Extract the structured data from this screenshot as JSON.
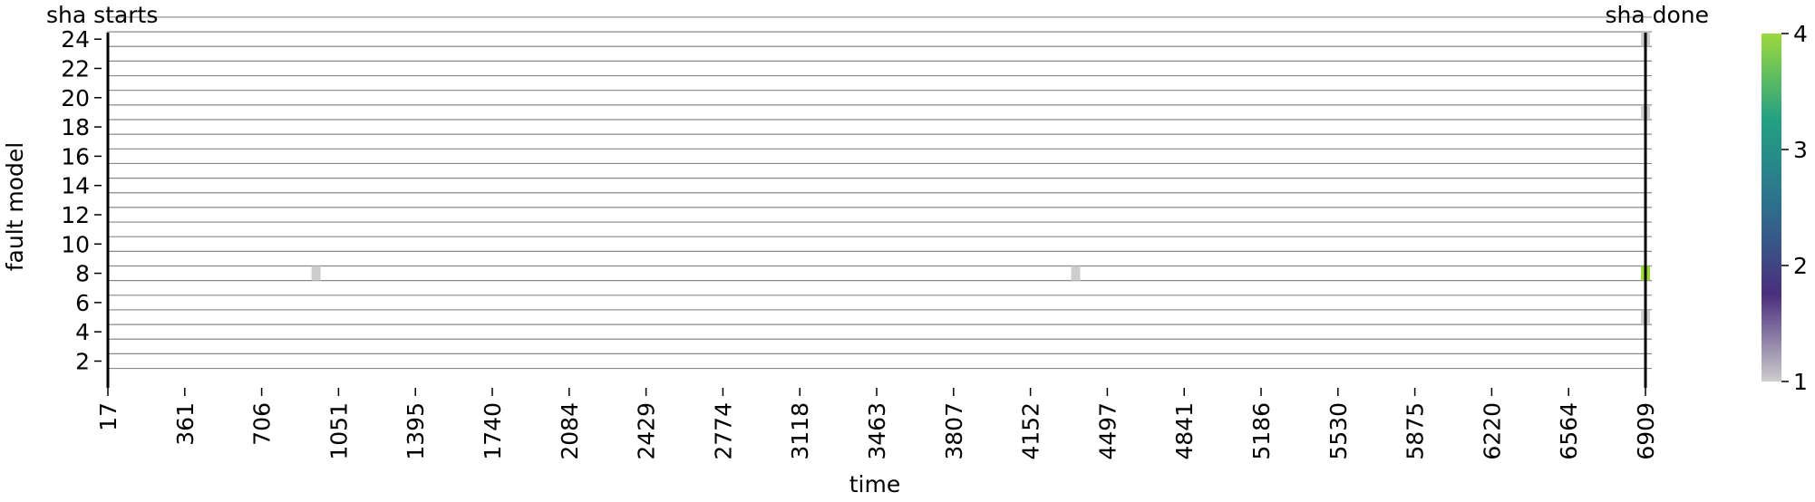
{
  "chart_data": {
    "type": "heatmap",
    "title": "",
    "xlabel": "time",
    "ylabel": "fault model",
    "x_ticks": [
      "17",
      "361",
      "706",
      "1051",
      "1395",
      "1740",
      "2084",
      "2429",
      "2774",
      "3118",
      "3463",
      "3807",
      "4152",
      "4497",
      "4841",
      "5186",
      "5530",
      "5875",
      "6220",
      "6564",
      "6909"
    ],
    "y_ticks": [
      "2",
      "4",
      "6",
      "8",
      "10",
      "12",
      "14",
      "16",
      "18",
      "20",
      "22",
      "24"
    ],
    "xlim": [
      17,
      6909
    ],
    "ylim": [
      1,
      25
    ],
    "grid": true,
    "annotations": [
      {
        "label": "sha starts",
        "x": 17
      },
      {
        "label": "sha done",
        "x": 6909
      }
    ],
    "cells": [
      {
        "x": 950,
        "fault_model": 8,
        "value": 1
      },
      {
        "x": 4355,
        "fault_model": 8,
        "value": 1
      },
      {
        "x": 6909,
        "fault_model": 8,
        "value": 4
      },
      {
        "x": 6909,
        "fault_model": 5,
        "value": 1
      },
      {
        "x": 6909,
        "fault_model": 19,
        "value": 1
      },
      {
        "x": 6909,
        "fault_model": 24,
        "value": 1
      }
    ],
    "colorbar": {
      "ticks": [
        "1",
        "2",
        "3",
        "4"
      ],
      "range": [
        1,
        4
      ],
      "colors": [
        "#cdcdcd",
        "#4a2f7e",
        "#2d6f8e",
        "#23a083",
        "#9bd93c"
      ]
    }
  }
}
